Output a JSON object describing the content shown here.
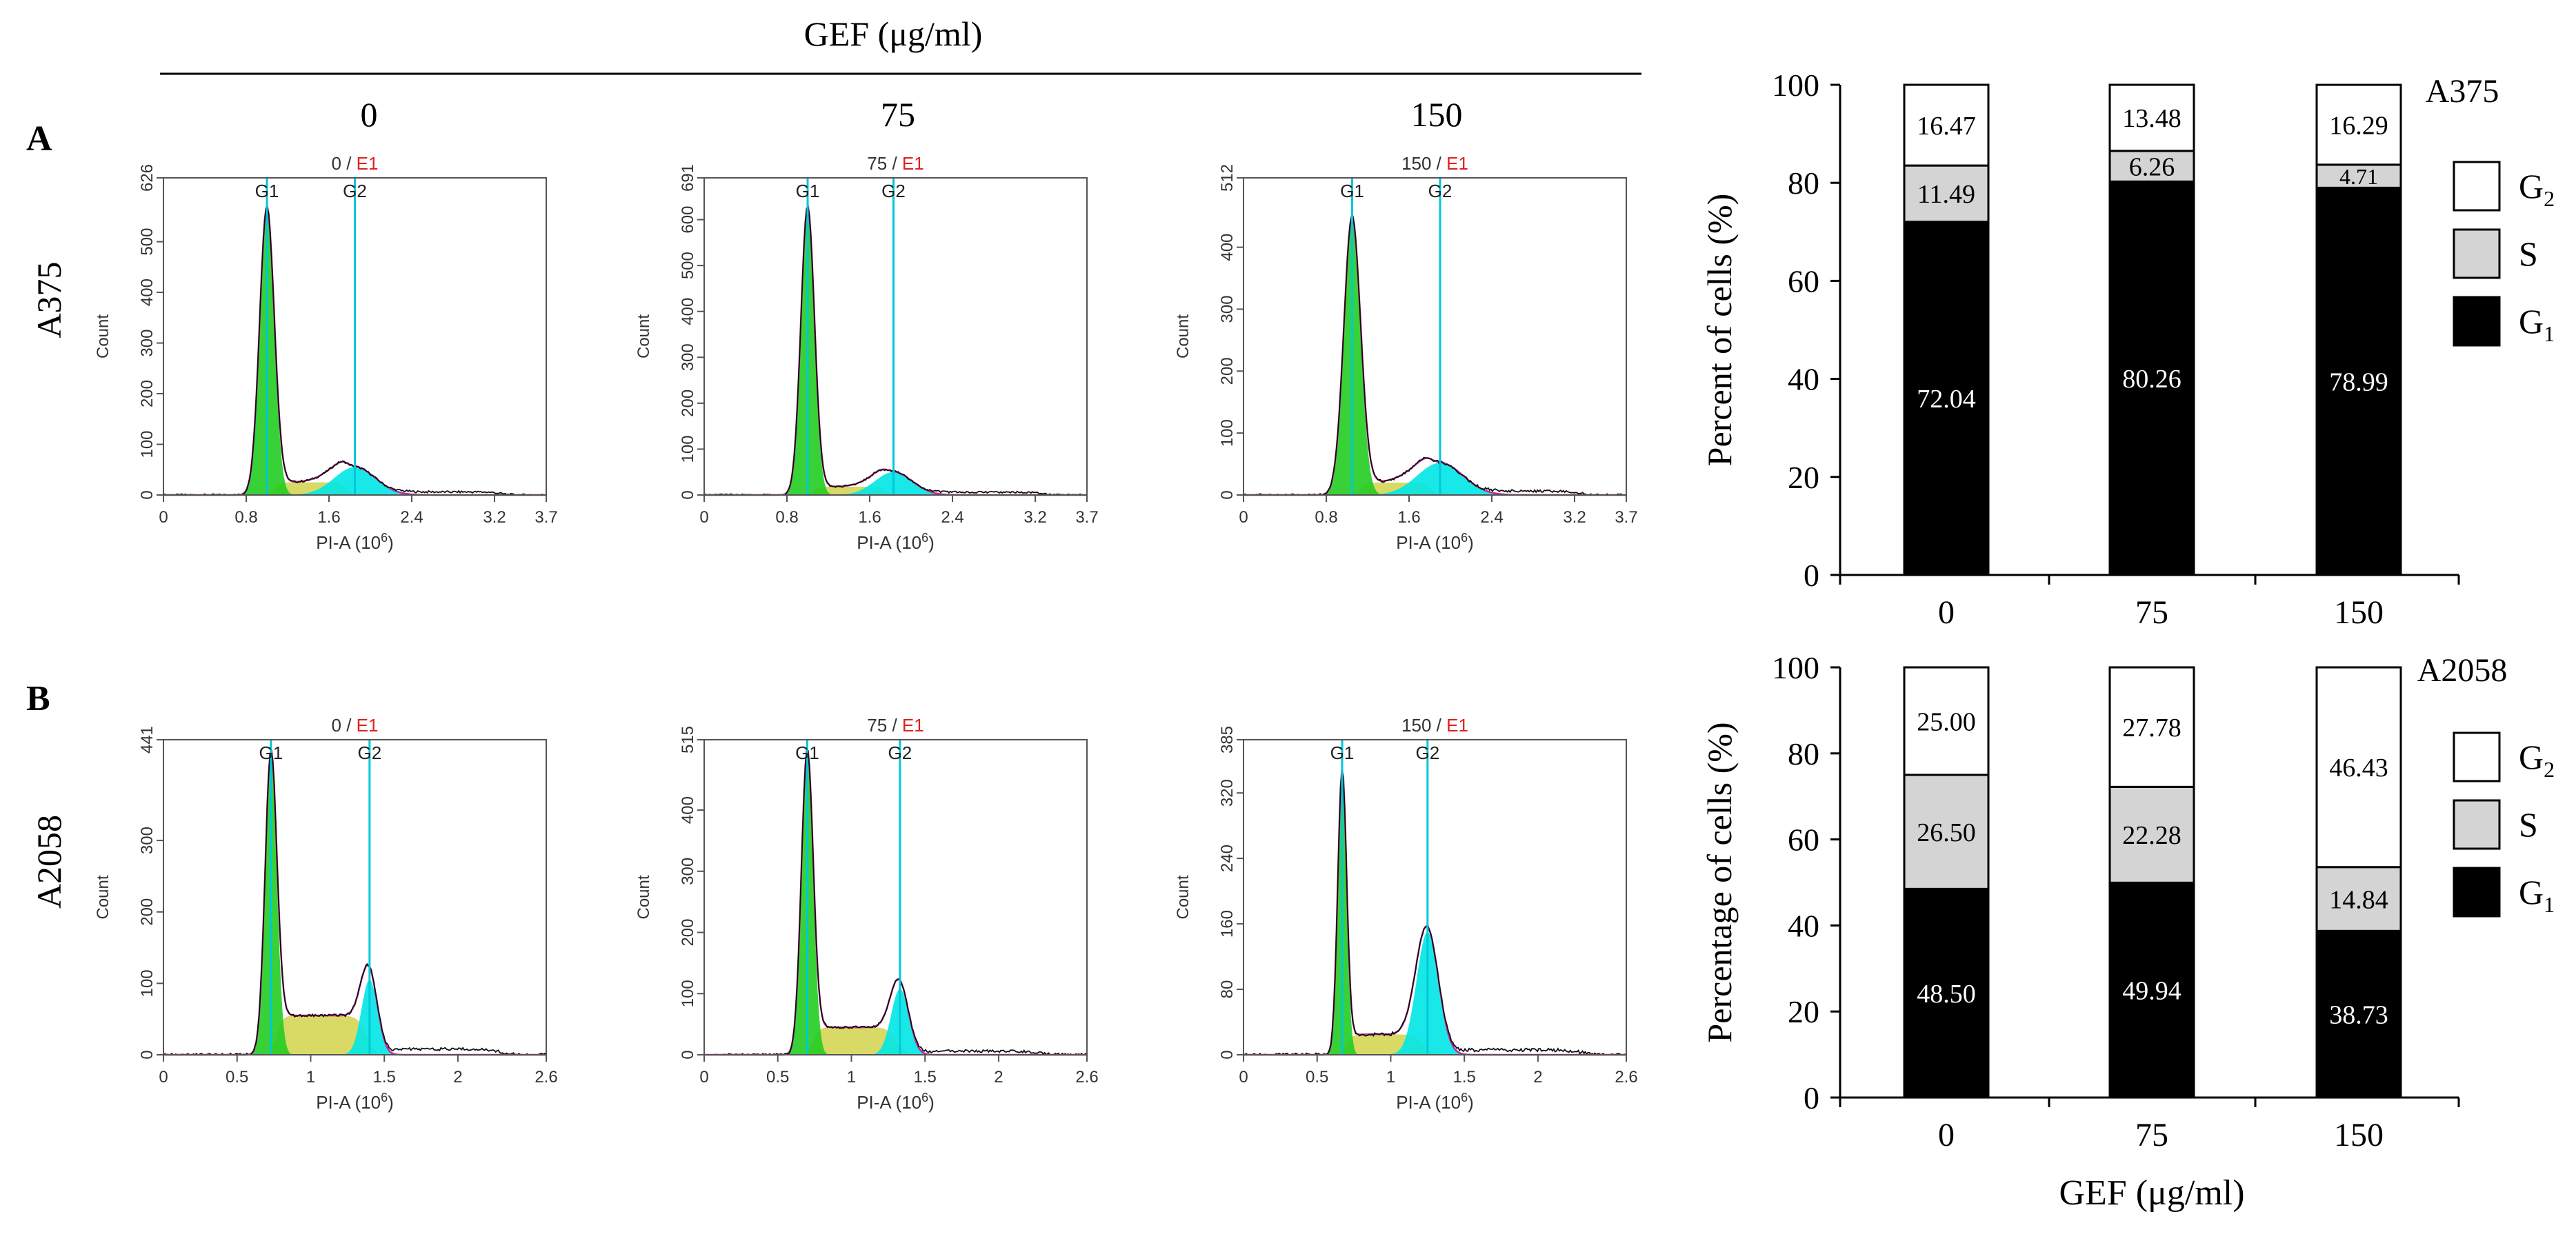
{
  "header": {
    "title": "GEF (μg/ml)",
    "col_labels": [
      "0",
      "75",
      "150"
    ]
  },
  "rows": [
    {
      "panel": "A",
      "cell_line": "A375"
    },
    {
      "panel": "B",
      "cell_line": "A2058"
    }
  ],
  "colors": {
    "g1_fill": "#22cc22",
    "s_fill": "#d2d24a",
    "g2_fill": "#00e5e5",
    "marker": "#00c8d8",
    "fit": "#d0209a",
    "sample_red": "#e02020"
  },
  "histogram_common": {
    "ylabel": "Count",
    "xlabel_prefix": "PI-A (10",
    "xlabel_exp": "6",
    "xlabel_suffix": ")",
    "marker_labels": [
      "G1",
      "G2"
    ]
  },
  "chart_data": [
    {
      "type": "histogram",
      "row": 0,
      "col": 0,
      "sample": "0",
      "gate": "E1",
      "ymax": 626,
      "yticks": [
        0,
        100,
        200,
        300,
        400,
        500,
        626
      ],
      "xticks": [
        "0",
        "0.8",
        "1.6",
        "2.4",
        "3.2",
        "3.7"
      ],
      "xmax": 3.7,
      "g1_pos": 1.0,
      "g2_pos": 1.85,
      "g1_peak": 570,
      "g1_width": 0.07,
      "g2_peak": 55,
      "g2_width": 0.2,
      "s_level": 25,
      "debris": 6
    },
    {
      "type": "histogram",
      "row": 0,
      "col": 1,
      "sample": "75",
      "gate": "E1",
      "ymax": 691,
      "yticks": [
        0,
        100,
        200,
        300,
        400,
        500,
        600,
        691
      ],
      "xticks": [
        "0",
        "0.8",
        "1.6",
        "2.4",
        "3.2",
        "3.7"
      ],
      "xmax": 3.7,
      "g1_pos": 1.0,
      "g2_pos": 1.83,
      "g1_peak": 630,
      "g1_width": 0.065,
      "g2_peak": 50,
      "g2_width": 0.18,
      "s_level": 18,
      "debris": 6
    },
    {
      "type": "histogram",
      "row": 0,
      "col": 2,
      "sample": "150",
      "gate": "E1",
      "ymax": 512,
      "yticks": [
        0,
        100,
        200,
        300,
        400,
        512
      ],
      "xticks": [
        "0",
        "0.8",
        "1.6",
        "2.4",
        "3.2",
        "3.7"
      ],
      "xmax": 3.7,
      "g1_pos": 1.05,
      "g2_pos": 1.9,
      "g1_peak": 450,
      "g1_width": 0.08,
      "g2_peak": 52,
      "g2_width": 0.22,
      "s_level": 20,
      "debris": 6
    },
    {
      "type": "histogram",
      "row": 1,
      "col": 0,
      "sample": "0",
      "gate": "E1",
      "ymax": 441,
      "yticks": [
        0,
        100,
        200,
        300,
        441
      ],
      "xticks": [
        "0",
        "0.5",
        "1",
        "1.5",
        "2",
        "2.6"
      ],
      "xmax": 2.6,
      "g1_pos": 0.73,
      "g2_pos": 1.4,
      "g1_peak": 420,
      "g1_width": 0.04,
      "g2_peak": 105,
      "g2_width": 0.055,
      "s_level": 55,
      "debris": 8
    },
    {
      "type": "histogram",
      "row": 1,
      "col": 1,
      "sample": "75",
      "gate": "E1",
      "ymax": 515,
      "yticks": [
        0,
        100,
        200,
        300,
        400,
        515
      ],
      "xticks": [
        "0",
        "0.5",
        "1",
        "1.5",
        "2",
        "2.6"
      ],
      "xmax": 2.6,
      "g1_pos": 0.7,
      "g2_pos": 1.33,
      "g1_peak": 495,
      "g1_width": 0.04,
      "g2_peak": 108,
      "g2_width": 0.06,
      "s_level": 45,
      "debris": 6
    },
    {
      "type": "histogram",
      "row": 1,
      "col": 2,
      "sample": "150",
      "gate": "E1",
      "ymax": 385,
      "yticks": [
        0,
        80,
        160,
        240,
        320,
        385
      ],
      "xticks": [
        "0",
        "0.5",
        "1",
        "1.5",
        "2",
        "2.6"
      ],
      "xmax": 2.6,
      "g1_pos": 0.67,
      "g2_pos": 1.25,
      "g1_peak": 345,
      "g1_width": 0.03,
      "g2_peak": 150,
      "g2_width": 0.075,
      "s_level": 25,
      "debris": 6
    },
    {
      "type": "stacked_bar",
      "row": 0,
      "title": "A375",
      "ylabel": "Percent of cells  (%)",
      "xlabel": "",
      "categories": [
        "0",
        "75",
        "150"
      ],
      "ylim": [
        0,
        100
      ],
      "yticks": [
        0,
        20,
        40,
        60,
        80,
        100
      ],
      "legend": [
        "G2",
        "S",
        "G1"
      ],
      "series": [
        {
          "name": "G1",
          "values": [
            72.04,
            80.26,
            78.99
          ],
          "labels": [
            "72.04",
            "80.26",
            "78.99"
          ]
        },
        {
          "name": "S",
          "values": [
            11.49,
            6.26,
            4.71
          ],
          "labels": [
            "11.49",
            "6.26",
            "4.71"
          ]
        },
        {
          "name": "G2",
          "values": [
            16.47,
            13.48,
            16.29
          ],
          "labels": [
            "16.47",
            "13.48",
            "16.29"
          ]
        }
      ]
    },
    {
      "type": "stacked_bar",
      "row": 1,
      "title": "A2058",
      "ylabel": "Percentage of cells (%)",
      "xlabel": "GEF (μg/ml)",
      "categories": [
        "0",
        "75",
        "150"
      ],
      "ylim": [
        0,
        100
      ],
      "yticks": [
        0,
        20,
        40,
        60,
        80,
        100
      ],
      "legend": [
        "G2",
        "S",
        "G1"
      ],
      "series": [
        {
          "name": "G1",
          "values": [
            48.5,
            49.94,
            38.73
          ],
          "labels": [
            "48.50",
            "49.94",
            "38.73"
          ]
        },
        {
          "name": "S",
          "values": [
            26.5,
            22.28,
            14.84
          ],
          "labels": [
            "26.50",
            "22.28",
            "14.84"
          ]
        },
        {
          "name": "G2",
          "values": [
            25.0,
            27.78,
            46.43
          ],
          "labels": [
            "25.00",
            "27.78",
            "46.43"
          ]
        }
      ]
    }
  ]
}
